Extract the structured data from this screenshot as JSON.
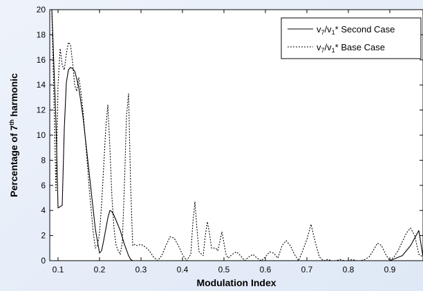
{
  "chart_data": {
    "type": "line",
    "xlabel": "Modulation Index",
    "ylabel_parts": {
      "before": "Percentage of 7",
      "sup": "th",
      "after": " harmonic"
    },
    "xlim": [
      0.08,
      0.98
    ],
    "ylim": [
      0,
      20
    ],
    "xticks": [
      0.1,
      0.2,
      0.3,
      0.4,
      0.5,
      0.6,
      0.7,
      0.8,
      0.9
    ],
    "yticks": [
      0,
      2,
      4,
      6,
      8,
      10,
      12,
      14,
      16,
      18,
      20
    ],
    "grid": false,
    "legend_position": "top-right",
    "series": [
      {
        "name": {
          "v": "v",
          "sub7": "7",
          "slash": "/v",
          "sub1": "1",
          "rest": "* Second Case"
        },
        "style": "solid",
        "x": [
          0.08,
          0.085,
          0.09,
          0.095,
          0.1,
          0.105,
          0.11,
          0.115,
          0.12,
          0.125,
          0.13,
          0.135,
          0.14,
          0.145,
          0.15,
          0.16,
          0.17,
          0.18,
          0.19,
          0.2,
          0.205,
          0.21,
          0.215,
          0.22,
          0.225,
          0.23,
          0.235,
          0.24,
          0.25,
          0.26,
          0.27,
          0.275,
          0.28,
          0.29,
          0.3,
          0.4,
          0.5,
          0.6,
          0.7,
          0.8,
          0.9,
          0.93,
          0.95,
          0.97,
          0.98
        ],
        "y": [
          20,
          20,
          15.5,
          11,
          4.2,
          4.3,
          4.4,
          10.5,
          14.2,
          15.2,
          15.4,
          15.3,
          15.1,
          14.5,
          13.8,
          11.5,
          8.5,
          5.5,
          2.5,
          0.6,
          0.8,
          1.6,
          2.5,
          3.4,
          4.0,
          3.9,
          3.6,
          3.2,
          2.4,
          1.3,
          0.4,
          0.1,
          0.0,
          0.0,
          0.0,
          0.0,
          0.0,
          0.0,
          0.0,
          0.0,
          0.0,
          0.4,
          1.2,
          2.4,
          0.3
        ]
      },
      {
        "name": {
          "v": "v",
          "sub7": "7",
          "slash": "/v",
          "sub1": "1",
          "rest": "* Base Case"
        },
        "style": "dotted",
        "x": [
          0.08,
          0.085,
          0.09,
          0.095,
          0.1,
          0.105,
          0.11,
          0.115,
          0.12,
          0.125,
          0.13,
          0.135,
          0.14,
          0.145,
          0.15,
          0.155,
          0.16,
          0.165,
          0.17,
          0.175,
          0.18,
          0.185,
          0.19,
          0.195,
          0.2,
          0.205,
          0.21,
          0.215,
          0.22,
          0.225,
          0.23,
          0.235,
          0.24,
          0.245,
          0.25,
          0.255,
          0.26,
          0.265,
          0.27,
          0.275,
          0.28,
          0.285,
          0.29,
          0.3,
          0.31,
          0.32,
          0.33,
          0.34,
          0.35,
          0.36,
          0.37,
          0.38,
          0.39,
          0.4,
          0.41,
          0.42,
          0.425,
          0.43,
          0.435,
          0.44,
          0.45,
          0.455,
          0.46,
          0.465,
          0.47,
          0.48,
          0.485,
          0.49,
          0.495,
          0.5,
          0.505,
          0.51,
          0.52,
          0.53,
          0.54,
          0.55,
          0.56,
          0.57,
          0.58,
          0.59,
          0.6,
          0.61,
          0.62,
          0.63,
          0.64,
          0.65,
          0.66,
          0.67,
          0.68,
          0.69,
          0.7,
          0.71,
          0.72,
          0.73,
          0.74,
          0.75,
          0.76,
          0.77,
          0.78,
          0.79,
          0.8,
          0.81,
          0.82,
          0.83,
          0.84,
          0.85,
          0.86,
          0.87,
          0.88,
          0.89,
          0.9,
          0.91,
          0.92,
          0.93,
          0.94,
          0.95,
          0.96,
          0.97,
          0.98
        ],
        "y": [
          20,
          20,
          13.0,
          5.5,
          14.0,
          16.9,
          15.6,
          15.2,
          16.5,
          17.4,
          17.2,
          15.8,
          14.0,
          13.5,
          14.6,
          13.5,
          12.0,
          10.0,
          8.0,
          5.8,
          4.0,
          2.2,
          1.0,
          1.2,
          2.2,
          4.5,
          7.5,
          10.5,
          12.4,
          9.0,
          5.0,
          2.5,
          1.2,
          0.8,
          0.5,
          1.5,
          6.0,
          11.5,
          13.3,
          6.0,
          1.2,
          1.3,
          1.2,
          1.3,
          1.1,
          0.8,
          0.3,
          0.0,
          0.4,
          1.2,
          1.9,
          1.8,
          1.2,
          0.5,
          0.0,
          0.5,
          3.0,
          4.7,
          2.5,
          0.7,
          0.4,
          2.0,
          3.1,
          2.2,
          1.0,
          1.0,
          0.8,
          1.5,
          2.3,
          1.4,
          0.5,
          0.2,
          0.5,
          0.7,
          0.4,
          0.0,
          0.3,
          0.5,
          0.2,
          0.0,
          0.3,
          0.7,
          0.6,
          0.2,
          1.2,
          1.6,
          1.2,
          0.5,
          0.0,
          0.8,
          1.7,
          2.9,
          1.5,
          0.3,
          0.0,
          0.1,
          0.0,
          0.0,
          0.1,
          0.0,
          0.0,
          0.1,
          0.0,
          0.0,
          0.1,
          0.3,
          0.8,
          1.4,
          1.2,
          0.5,
          0.0,
          0.3,
          0.8,
          1.5,
          2.2,
          2.6,
          2.0,
          0.5,
          0.3
        ]
      }
    ]
  }
}
